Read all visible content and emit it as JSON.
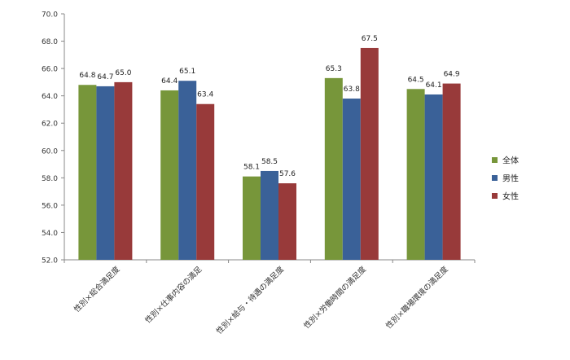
{
  "chart_data": {
    "type": "bar",
    "categories": [
      "性別×総合満足度",
      "性別×仕事内容の満足",
      "性別×給与・待遇の満足度",
      "性別×労働時間の満足度",
      "性別×職場環境の満足度"
    ],
    "series": [
      {
        "name": "全体",
        "color": "#77963a",
        "values": [
          64.8,
          64.4,
          58.1,
          65.3,
          64.5
        ]
      },
      {
        "name": "男性",
        "color": "#3a6198",
        "values": [
          64.7,
          65.1,
          58.5,
          63.8,
          64.1
        ]
      },
      {
        "name": "女性",
        "color": "#983a3a",
        "values": [
          65.0,
          63.4,
          57.6,
          67.5,
          64.9
        ]
      }
    ],
    "ylim": [
      52.0,
      70.0
    ],
    "yticks": [
      "52.0",
      "54.0",
      "56.0",
      "58.0",
      "60.0",
      "62.0",
      "64.0",
      "66.0",
      "68.0",
      "70.0"
    ],
    "title": "",
    "xlabel": "",
    "ylabel": "",
    "grid": false,
    "legend_position": "right"
  }
}
